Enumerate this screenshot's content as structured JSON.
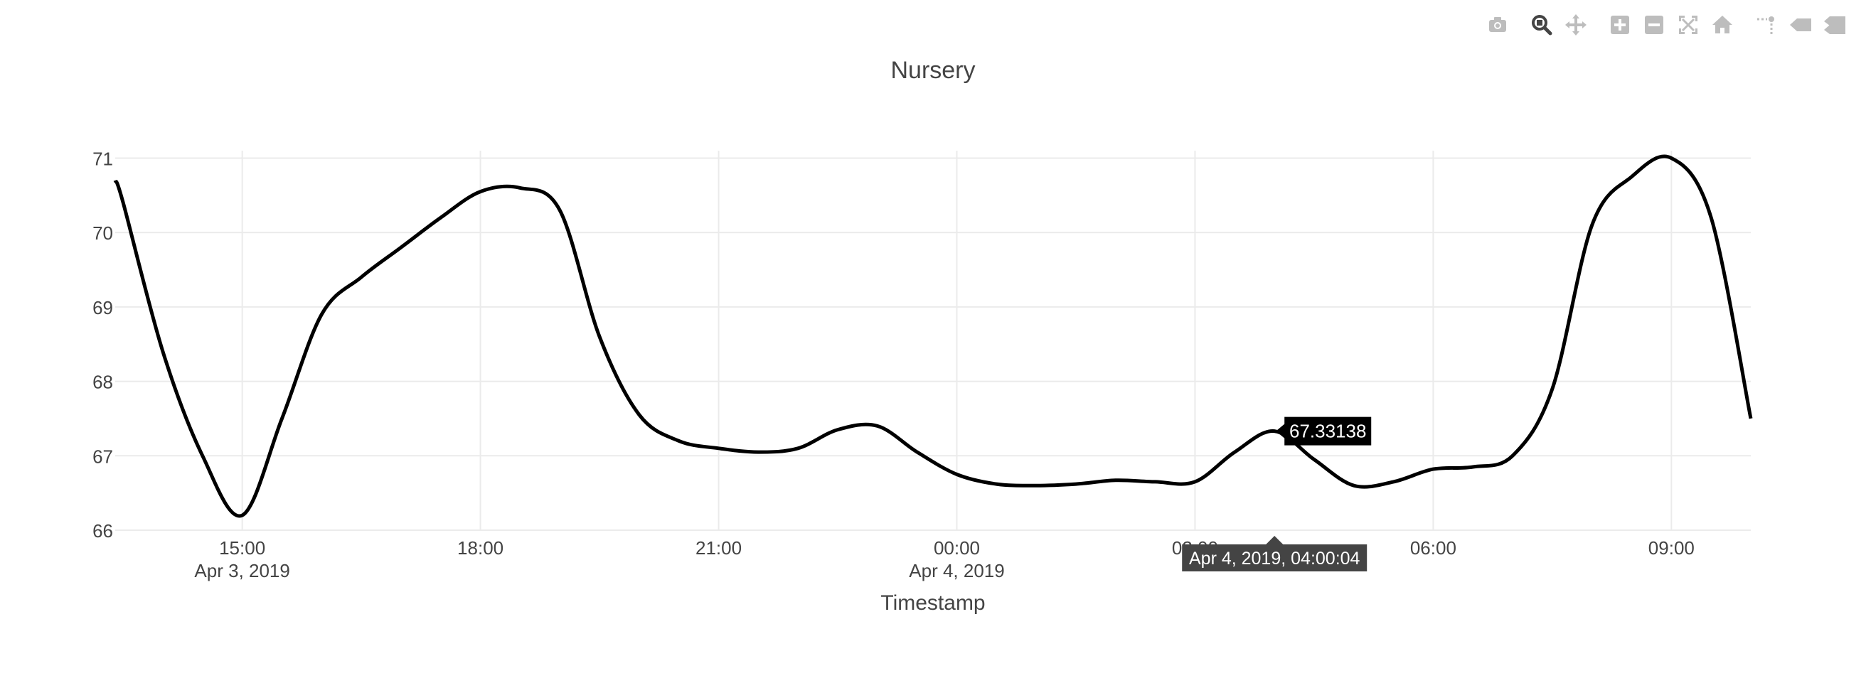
{
  "modebar": {
    "buttons": [
      {
        "icon": "camera-icon",
        "name": "download-plot-button"
      },
      {
        "icon": "zoom-icon",
        "name": "zoom-button"
      },
      {
        "icon": "pan-icon",
        "name": "pan-button"
      },
      {
        "icon": "zoom-in-icon",
        "name": "zoom-in-button"
      },
      {
        "icon": "zoom-out-icon",
        "name": "zoom-out-button"
      },
      {
        "icon": "autoscale-icon",
        "name": "autoscale-button"
      },
      {
        "icon": "home-icon",
        "name": "reset-axes-button"
      },
      {
        "icon": "spike-lines-icon",
        "name": "spike-lines-button"
      },
      {
        "icon": "hover-closest-icon",
        "name": "hover-closest-button"
      },
      {
        "icon": "hover-compare-icon",
        "name": "hover-compare-button"
      }
    ],
    "active_color": "#444444",
    "inactive_color": "#bdbdbd"
  },
  "chart_data": {
    "type": "line",
    "title": "Nursery",
    "xlabel": "Timestamp",
    "ylabel": "",
    "x_type": "datetime",
    "xlim": [
      "2019-04-03 13:24",
      "2019-04-04 10:00"
    ],
    "ylim": [
      66,
      71.1
    ],
    "yticks": [
      66,
      67,
      68,
      69,
      70,
      71
    ],
    "xticks": [
      {
        "value": "2019-04-03 15:00",
        "label": "15:00",
        "sublabel": "Apr 3, 2019"
      },
      {
        "value": "2019-04-03 18:00",
        "label": "18:00",
        "sublabel": ""
      },
      {
        "value": "2019-04-03 21:00",
        "label": "21:00",
        "sublabel": ""
      },
      {
        "value": "2019-04-04 00:00",
        "label": "00:00",
        "sublabel": "Apr 4, 2019"
      },
      {
        "value": "2019-04-04 03:00",
        "label": "03:00",
        "sublabel": ""
      },
      {
        "value": "2019-04-04 06:00",
        "label": "06:00",
        "sublabel": ""
      },
      {
        "value": "2019-04-04 09:00",
        "label": "09:00",
        "sublabel": ""
      }
    ],
    "grid": true,
    "line_color": "#000000",
    "line_shape": "spline",
    "series": [
      {
        "x": [
          "2019-04-03 13:24",
          "2019-04-03 13:30",
          "2019-04-03 14:00",
          "2019-04-03 14:30",
          "2019-04-03 15:00",
          "2019-04-03 15:30",
          "2019-04-03 16:00",
          "2019-04-03 16:30",
          "2019-04-03 17:00",
          "2019-04-03 17:30",
          "2019-04-03 18:00",
          "2019-04-03 18:30",
          "2019-04-03 19:00",
          "2019-04-03 19:30",
          "2019-04-03 20:00",
          "2019-04-03 20:30",
          "2019-04-03 21:00",
          "2019-04-03 21:30",
          "2019-04-03 22:00",
          "2019-04-03 22:30",
          "2019-04-03 23:00",
          "2019-04-03 23:30",
          "2019-04-04 00:00",
          "2019-04-04 00:30",
          "2019-04-04 01:00",
          "2019-04-04 01:30",
          "2019-04-04 02:00",
          "2019-04-04 02:30",
          "2019-04-04 03:00",
          "2019-04-04 03:30",
          "2019-04-04 04:00",
          "2019-04-04 04:30",
          "2019-04-04 05:00",
          "2019-04-04 05:30",
          "2019-04-04 06:00",
          "2019-04-04 06:30",
          "2019-04-04 07:00",
          "2019-04-04 07:30",
          "2019-04-04 08:00",
          "2019-04-04 08:30",
          "2019-04-04 09:00",
          "2019-04-04 09:30",
          "2019-04-04 10:00"
        ],
        "y": [
          70.7,
          70.4,
          68.4,
          67.0,
          66.2,
          67.5,
          68.9,
          69.4,
          69.8,
          70.2,
          70.55,
          70.6,
          70.3,
          68.6,
          67.55,
          67.2,
          67.1,
          67.05,
          67.1,
          67.35,
          67.4,
          67.05,
          66.75,
          66.62,
          66.6,
          66.62,
          66.67,
          66.65,
          66.65,
          67.05,
          67.33138,
          66.95,
          66.6,
          66.65,
          66.82,
          66.85,
          67.0,
          67.9,
          70.1,
          70.75,
          71.0,
          70.2,
          67.5
        ]
      }
    ],
    "hover": {
      "x": "2019-04-04 04:00:04",
      "y": 67.33138,
      "value_label": "67.33138",
      "x_label": "Apr 4, 2019, 04:00:04"
    }
  }
}
